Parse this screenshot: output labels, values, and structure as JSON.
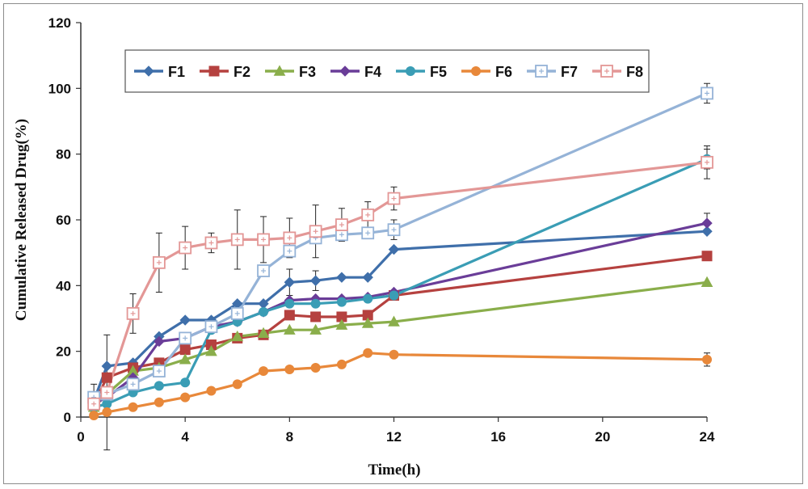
{
  "chart_data": {
    "type": "line",
    "xlabel": "Time(h)",
    "ylabel": "Cumulative Released Drug(%)",
    "xlim": [
      0,
      24
    ],
    "ylim": [
      0,
      120
    ],
    "x_ticks": [
      0,
      4,
      8,
      12,
      16,
      20,
      24
    ],
    "y_ticks": [
      0,
      20,
      40,
      60,
      80,
      100,
      120
    ],
    "grid": false,
    "legend_position": "top",
    "series": [
      {
        "name": "F1",
        "color": "#3f6faa",
        "marker": "diamond",
        "x": [
          0.5,
          1,
          2,
          3,
          4,
          5,
          6,
          7,
          8,
          9,
          10,
          11,
          12,
          24
        ],
        "y": [
          5,
          15.5,
          16.5,
          24.5,
          29.5,
          29.5,
          34.5,
          34.5,
          41,
          41.5,
          42.5,
          42.5,
          51,
          56.5
        ],
        "err": [
          null,
          null,
          null,
          null,
          null,
          null,
          null,
          null,
          4,
          3,
          null,
          null,
          null,
          null
        ]
      },
      {
        "name": "F2",
        "color": "#b5413f",
        "marker": "square",
        "x": [
          0.5,
          1,
          2,
          3,
          4,
          5,
          6,
          7,
          8,
          9,
          10,
          11,
          12,
          24
        ],
        "y": [
          4,
          12,
          15,
          16.5,
          20.5,
          22,
          24,
          25,
          31,
          30.5,
          30.5,
          31,
          37,
          49
        ],
        "err": [
          null,
          null,
          null,
          null,
          null,
          null,
          null,
          null,
          null,
          null,
          null,
          null,
          null,
          null
        ]
      },
      {
        "name": "F3",
        "color": "#8aae4b",
        "marker": "triangle",
        "x": [
          0.5,
          1,
          2,
          3,
          4,
          5,
          6,
          7,
          8,
          9,
          10,
          11,
          12,
          24
        ],
        "y": [
          3,
          7,
          14,
          15,
          17.5,
          20,
          24.5,
          25.5,
          26.5,
          26.5,
          28,
          28.5,
          29,
          41
        ],
        "err": [
          null,
          null,
          null,
          null,
          null,
          null,
          null,
          null,
          null,
          null,
          null,
          null,
          null,
          null
        ]
      },
      {
        "name": "F4",
        "color": "#6a3d98",
        "marker": "diamond",
        "x": [
          0.5,
          1,
          2,
          3,
          4,
          5,
          6,
          7,
          8,
          9,
          10,
          11,
          12,
          24
        ],
        "y": [
          4,
          6,
          12,
          23,
          24,
          27.5,
          29,
          32,
          35.5,
          36,
          36,
          36.5,
          38,
          59
        ],
        "err": [
          null,
          null,
          null,
          null,
          null,
          null,
          null,
          null,
          null,
          null,
          null,
          null,
          null,
          3
        ]
      },
      {
        "name": "F5",
        "color": "#3a9db5",
        "marker": "circle",
        "x": [
          0.5,
          1,
          2,
          3,
          4,
          5,
          6,
          7,
          8,
          9,
          10,
          11,
          12,
          24
        ],
        "y": [
          3,
          4,
          7.5,
          9.5,
          10.5,
          26.5,
          29,
          32,
          34.5,
          34.5,
          35,
          36,
          37,
          78.5
        ],
        "err": [
          null,
          null,
          null,
          null,
          null,
          null,
          null,
          null,
          null,
          null,
          null,
          null,
          null,
          3
        ]
      },
      {
        "name": "F6",
        "color": "#e8883a",
        "marker": "circle",
        "x": [
          0.5,
          1,
          2,
          3,
          4,
          5,
          6,
          7,
          8,
          9,
          10,
          11,
          12,
          24
        ],
        "y": [
          0.5,
          1.5,
          3,
          4.5,
          6,
          8,
          10,
          14,
          14.5,
          15,
          16,
          19.5,
          19,
          17.5
        ],
        "err": [
          null,
          null,
          null,
          null,
          null,
          null,
          null,
          null,
          null,
          null,
          null,
          null,
          null,
          2
        ]
      },
      {
        "name": "F7",
        "color": "#95b3d7",
        "marker": "square-open",
        "x": [
          0.5,
          1,
          2,
          3,
          4,
          5,
          6,
          7,
          8,
          9,
          10,
          11,
          12,
          24
        ],
        "y": [
          6,
          7,
          10,
          14,
          24,
          27.5,
          31.5,
          44.5,
          50.5,
          54.5,
          55.5,
          56,
          57,
          98.5
        ],
        "err": [
          4,
          null,
          null,
          null,
          null,
          null,
          null,
          null,
          null,
          null,
          null,
          null,
          3,
          3
        ]
      },
      {
        "name": "F8",
        "color": "#e39796",
        "marker": "square-open",
        "x": [
          0.5,
          1,
          2,
          3,
          4,
          5,
          6,
          7,
          8,
          9,
          10,
          11,
          12,
          24
        ],
        "y": [
          4,
          7.5,
          31.5,
          47,
          51.5,
          53,
          54,
          54,
          54.5,
          56.5,
          58.5,
          61.5,
          66.5,
          77.5
        ],
        "err": [
          null,
          17.5,
          6,
          9,
          6.5,
          3,
          9,
          7,
          6,
          8,
          5,
          4,
          3.5,
          5
        ]
      }
    ]
  }
}
